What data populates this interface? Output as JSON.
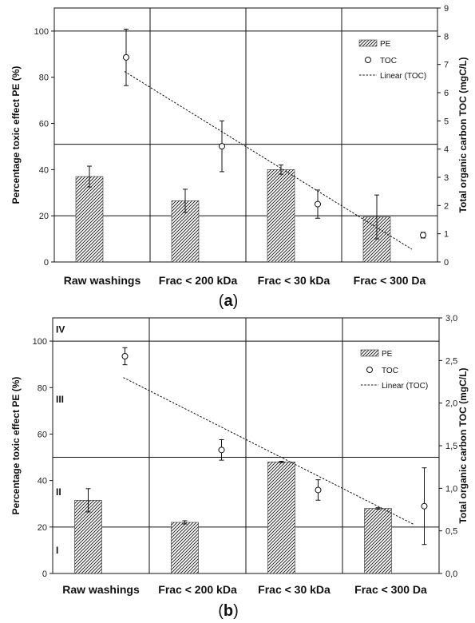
{
  "chart_data": [
    {
      "type": "bar",
      "panel_label": "a",
      "categories": [
        "Raw washings",
        "Frac < 200 kDa",
        "Frac < 30 kDa",
        "Frac < 300 Da"
      ],
      "ylabel": "Percentage toxic effect PE (%)",
      "y2label": "Total organic carbon TOC (mgC/L)",
      "ylim": [
        0,
        110
      ],
      "y2lim": [
        0,
        9
      ],
      "yticks": [
        "0",
        "20",
        "40",
        "60",
        "80",
        "100"
      ],
      "y2ticks": [
        "0",
        "1",
        "2",
        "3",
        "4",
        "5",
        "6",
        "7",
        "8",
        "9"
      ],
      "hlines": [
        20,
        51,
        100
      ],
      "zones": [],
      "legend": {
        "position": "top-right",
        "entries": [
          "PE",
          "TOC",
          "Linear (TOC)"
        ]
      },
      "series": [
        {
          "name": "PE",
          "kind": "bar",
          "axis": "left",
          "values": [
            37,
            26.5,
            40,
            19.5
          ],
          "errors": [
            4.5,
            5,
            2,
            9.5
          ]
        },
        {
          "name": "TOC",
          "kind": "scatter",
          "axis": "right",
          "values": [
            7.25,
            4.1,
            2.05,
            0.95
          ],
          "errors": [
            1.0,
            0.9,
            0.5,
            0.1
          ]
        },
        {
          "name": "Linear (TOC)",
          "kind": "trend",
          "axis": "right",
          "from": 6.75,
          "to": 0.45
        }
      ]
    },
    {
      "type": "bar",
      "panel_label": "b",
      "categories": [
        "Raw washings",
        "Frac < 200 kDa",
        "Frac < 30 kDa",
        "Frac < 300 Da"
      ],
      "ylabel": "Percentage toxic effect PE (%)",
      "y2label": "Total organic carbon TOC (mgC/L)",
      "ylim": [
        0,
        110
      ],
      "y2lim": [
        0,
        3.0
      ],
      "yticks": [
        "0",
        "20",
        "40",
        "60",
        "80",
        "100"
      ],
      "y2ticks": [
        "0,0",
        "0,5",
        "1,0",
        "1,5",
        "2,0",
        "2,5",
        "3,0"
      ],
      "hlines": [
        20,
        50,
        100
      ],
      "zones": [
        "I",
        "II",
        "III",
        "IV"
      ],
      "legend": {
        "position": "top-right",
        "entries": [
          "PE",
          "TOC",
          "Linear (TOC)"
        ]
      },
      "series": [
        {
          "name": "PE",
          "kind": "bar",
          "axis": "left",
          "values": [
            31.5,
            22,
            48,
            28
          ],
          "errors": [
            5,
            0.7,
            0.3,
            0.3
          ]
        },
        {
          "name": "TOC",
          "kind": "scatter",
          "axis": "right",
          "values": [
            2.55,
            1.45,
            0.98,
            0.79
          ],
          "errors": [
            0.1,
            0.12,
            0.12,
            0.45
          ]
        },
        {
          "name": "Linear (TOC)",
          "kind": "trend",
          "axis": "right",
          "from": 2.3,
          "to": 0.58
        }
      ]
    }
  ]
}
